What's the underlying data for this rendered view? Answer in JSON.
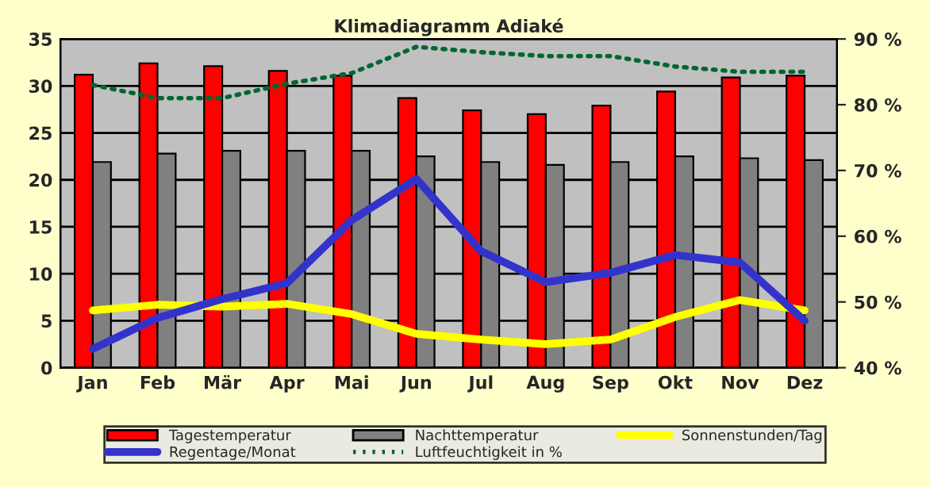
{
  "chart_data": {
    "type": "bar",
    "title": "Klimadiagramm Adiaké",
    "categories": [
      "Jan",
      "Feb",
      "Mär",
      "Apr",
      "Mai",
      "Jun",
      "Jul",
      "Aug",
      "Sep",
      "Okt",
      "Nov",
      "Dez"
    ],
    "series": [
      {
        "name": "Tagestemperatur",
        "color": "#ff0000",
        "values": [
          31.2,
          32.4,
          32.1,
          31.6,
          31.1,
          28.7,
          27.4,
          27.0,
          27.9,
          29.4,
          30.9,
          31.1
        ]
      },
      {
        "name": "Nachttemperatur",
        "color": "#808080",
        "values": [
          21.9,
          22.8,
          23.1,
          23.1,
          23.1,
          22.5,
          21.9,
          21.6,
          21.9,
          22.5,
          22.3,
          22.1
        ]
      },
      {
        "name": "Sonnenstunden/Tag",
        "type": "line",
        "color": "#ffff00",
        "values": [
          6.1,
          6.7,
          6.5,
          6.8,
          5.7,
          3.6,
          3.0,
          2.5,
          3.0,
          5.4,
          7.2,
          6.1
        ]
      },
      {
        "name": "Regentage/Monat",
        "type": "line",
        "color": "#3333cc",
        "values": [
          2.0,
          5.3,
          7.3,
          9.0,
          15.7,
          20.1,
          12.4,
          9.1,
          10.1,
          12.0,
          11.2,
          5.0
        ]
      },
      {
        "name": "Luftfeuchtigkeit in %",
        "type": "line",
        "color": "#006633",
        "line_style": "dotted",
        "axis": "y2",
        "values": [
          83.0,
          81.0,
          81.0,
          83.2,
          84.8,
          88.8,
          88.0,
          87.4,
          87.4,
          85.8,
          85.0,
          85.0
        ]
      }
    ],
    "ylim": [
      0,
      35
    ],
    "yticks": [
      0,
      5,
      10,
      15,
      20,
      25,
      30,
      35
    ],
    "y2lim": [
      40,
      90
    ],
    "y2ticks": [
      {
        "value": 40,
        "label": "40 %"
      },
      {
        "value": 50,
        "label": "50 %"
      },
      {
        "value": 60,
        "label": "60 %"
      },
      {
        "value": 70,
        "label": "70 %"
      },
      {
        "value": 80,
        "label": "80 %"
      },
      {
        "value": 90,
        "label": "90 %"
      }
    ],
    "grid": "y",
    "legend": "bottom"
  }
}
